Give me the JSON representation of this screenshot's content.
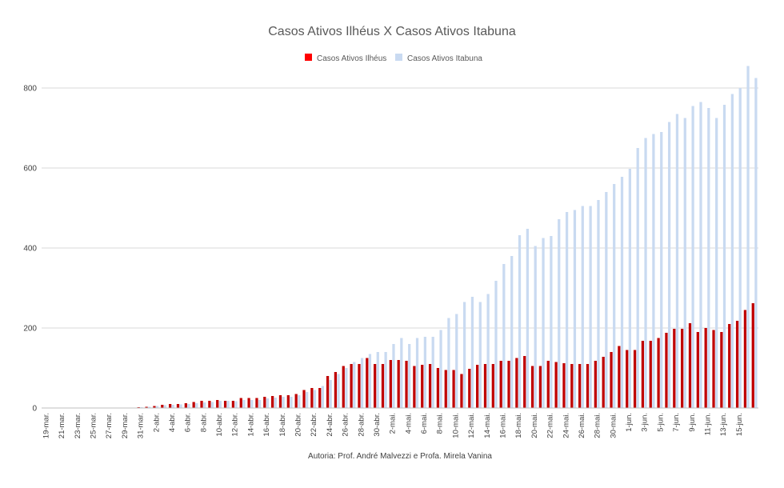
{
  "chart_data": {
    "type": "bar",
    "title": "Casos Ativos Ilhéus X Casos Ativos Itabuna",
    "xlabel": "",
    "ylabel": "",
    "ylim": [
      0,
      900
    ],
    "yticks": [
      0,
      200,
      400,
      600,
      800
    ],
    "grid": true,
    "legend_position": "top",
    "caption": "Autoria: Prof. André Malvezzi e Profa. Mirela Vanina",
    "series": [
      {
        "name": "Casos Ativos Ilhéus",
        "color": "#c00000",
        "legend_color": "#ff0000",
        "values": [
          0,
          0,
          0,
          0,
          0,
          0,
          0,
          0,
          0,
          0,
          0,
          0,
          2,
          3,
          5,
          8,
          10,
          10,
          12,
          15,
          18,
          18,
          20,
          18,
          18,
          25,
          25,
          25,
          28,
          30,
          32,
          32,
          35,
          45,
          50,
          50,
          80,
          90,
          105,
          110,
          110,
          125,
          110,
          110,
          120,
          120,
          118,
          105,
          108,
          110,
          100,
          95,
          95,
          85,
          98,
          108,
          110,
          110,
          118,
          118,
          125,
          130,
          105,
          105,
          118,
          115,
          112,
          110,
          110,
          110,
          118,
          128,
          140,
          155,
          145,
          145,
          168,
          168,
          175,
          188,
          198,
          198,
          212,
          190,
          200,
          195,
          190,
          210,
          218,
          245,
          262
        ]
      },
      {
        "name": "Casos Ativos Itabuna",
        "color": "#c9daf1",
        "legend_color": "#c9daf1",
        "values": [
          0,
          0,
          0,
          0,
          0,
          0,
          0,
          0,
          0,
          0,
          0,
          0,
          2,
          3,
          5,
          7,
          8,
          9,
          10,
          12,
          14,
          15,
          18,
          18,
          17,
          20,
          20,
          20,
          24,
          26,
          28,
          28,
          32,
          40,
          45,
          55,
          70,
          85,
          100,
          115,
          125,
          135,
          140,
          140,
          160,
          175,
          160,
          175,
          178,
          178,
          195,
          225,
          235,
          265,
          278,
          265,
          285,
          318,
          360,
          380,
          432,
          448,
          405,
          425,
          430,
          472,
          490,
          495,
          505,
          505,
          520,
          540,
          560,
          578,
          598,
          650,
          675,
          685,
          690,
          715,
          735,
          725,
          755,
          765,
          750,
          725,
          758,
          785,
          800,
          855,
          825
        ]
      }
    ],
    "tick_labels": [
      "19-mar.",
      "21-mar.",
      "23-mar.",
      "25-mar.",
      "27-mar.",
      "29-mar.",
      "31-mar.",
      "2-abr.",
      "4-abr.",
      "6-abr.",
      "8-abr.",
      "10-abr.",
      "12-abr.",
      "14-abr.",
      "16-abr.",
      "18-abr.",
      "20-abr.",
      "22-abr.",
      "24-abr.",
      "26-abr.",
      "28-abr.",
      "30-abr.",
      "2-mai.",
      "4-mai.",
      "6-mai.",
      "8-mai.",
      "10-mai.",
      "12-mai.",
      "14-mai.",
      "16-mai.",
      "18-mai.",
      "20-mai.",
      "22-mai.",
      "24-mai.",
      "26-mai.",
      "28-mai.",
      "30-mai.",
      "1-jun.",
      "3-jun.",
      "5-jun.",
      "7-jun.",
      "9-jun.",
      "11-jun.",
      "13-jun.",
      "15-jun."
    ],
    "tick_every": 2
  }
}
